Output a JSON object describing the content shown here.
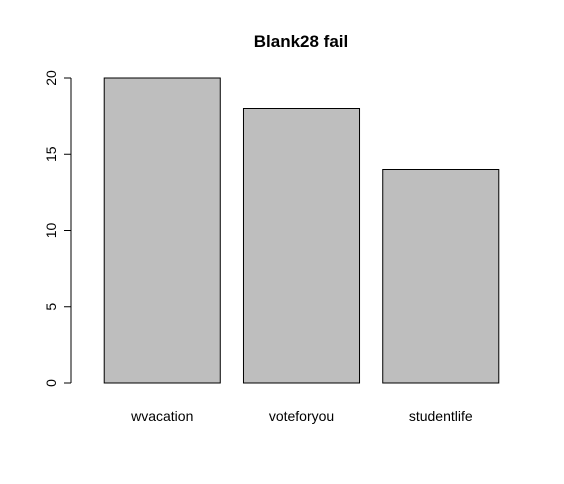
{
  "chart_data": {
    "type": "bar",
    "title": "Blank28 fail",
    "xlabel": "",
    "ylabel": "",
    "categories": [
      "wvacation",
      "voteforyou",
      "studentlife"
    ],
    "values": [
      20,
      18,
      14
    ],
    "ylim": [
      0,
      20
    ],
    "yticks": [
      "0",
      "5",
      "10",
      "15",
      "20"
    ],
    "grid": false,
    "bar_color": "#bebebe",
    "border_color": "#000000"
  }
}
